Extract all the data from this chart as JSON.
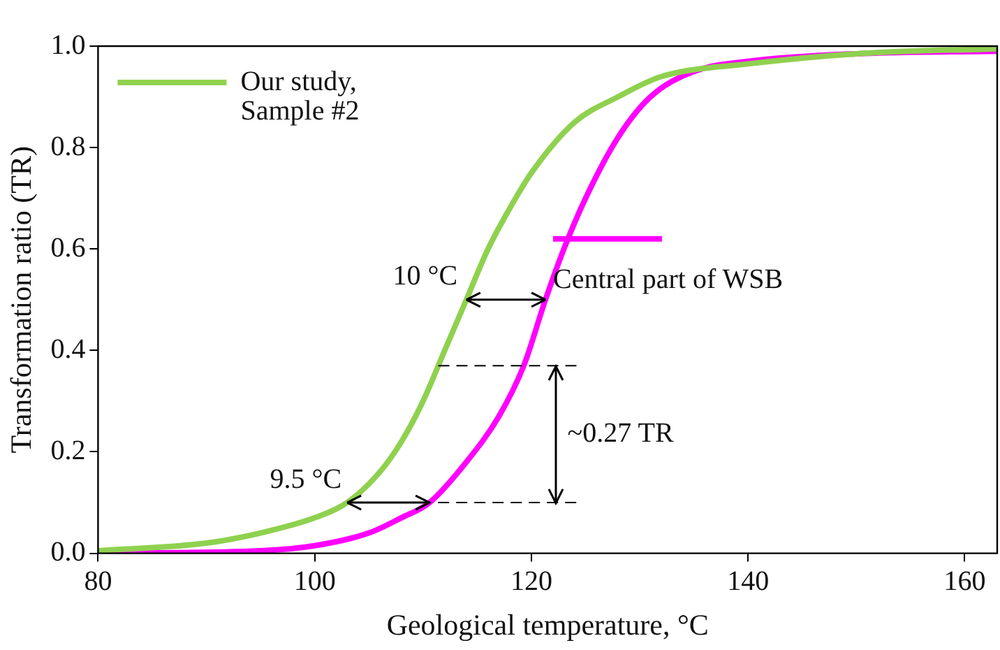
{
  "chart_data": {
    "type": "line",
    "xlabel": "Geological temperature, °C",
    "ylabel": "Transformation ratio (TR)",
    "xlim": [
      80,
      163
    ],
    "xticks": [
      80,
      100,
      120,
      140,
      160
    ],
    "ylim": [
      0,
      1
    ],
    "yticks": [
      {
        "value": 0,
        "label": "0.0"
      },
      {
        "value": 0.2,
        "label": "0.2"
      },
      {
        "value": 0.4,
        "label": "0.4"
      },
      {
        "value": 0.6,
        "label": "0.6"
      },
      {
        "value": 0.8,
        "label": "0.8"
      },
      {
        "value": 1,
        "label": "1.0"
      }
    ],
    "series": [
      {
        "name": "Our study, Sample #2",
        "color": "#8fd14f",
        "x": [
          80,
          90,
          95,
          100,
          103,
          106,
          108,
          110,
          112,
          114,
          116,
          118,
          120,
          124,
          128,
          132,
          140,
          150,
          163
        ],
        "values": [
          0.005,
          0.02,
          0.04,
          0.07,
          0.1,
          0.16,
          0.22,
          0.3,
          0.4,
          0.5,
          0.6,
          0.68,
          0.75,
          0.85,
          0.9,
          0.94,
          0.965,
          0.985,
          0.995
        ]
      },
      {
        "name": "Central part of WSB",
        "color": "#ff00ff",
        "x": [
          80,
          95,
          100,
          105,
          108,
          110.6,
          114,
          117,
          119.3,
          121.3,
          123,
          125,
          128,
          131,
          135,
          140,
          150,
          163
        ],
        "values": [
          0,
          0.005,
          0.015,
          0.04,
          0.07,
          0.1,
          0.18,
          0.27,
          0.37,
          0.5,
          0.6,
          0.7,
          0.82,
          0.9,
          0.95,
          0.97,
          0.985,
          0.99
        ]
      }
    ],
    "annotations": [
      {
        "text": "10 °C",
        "x": 113.7,
        "y": 0.5
      },
      {
        "text": "9.5 °C",
        "x": 103,
        "y": 0.1
      },
      "~0.27 TR"
    ],
    "ref_lines": [
      {
        "axis": "y",
        "value": 0.37,
        "line_style": "dashed"
      },
      {
        "axis": "y",
        "value": 0.1,
        "line_style": "dashed"
      }
    ],
    "legend": "top left",
    "grid": false,
    "marker": "none",
    "line_style": "solid"
  }
}
